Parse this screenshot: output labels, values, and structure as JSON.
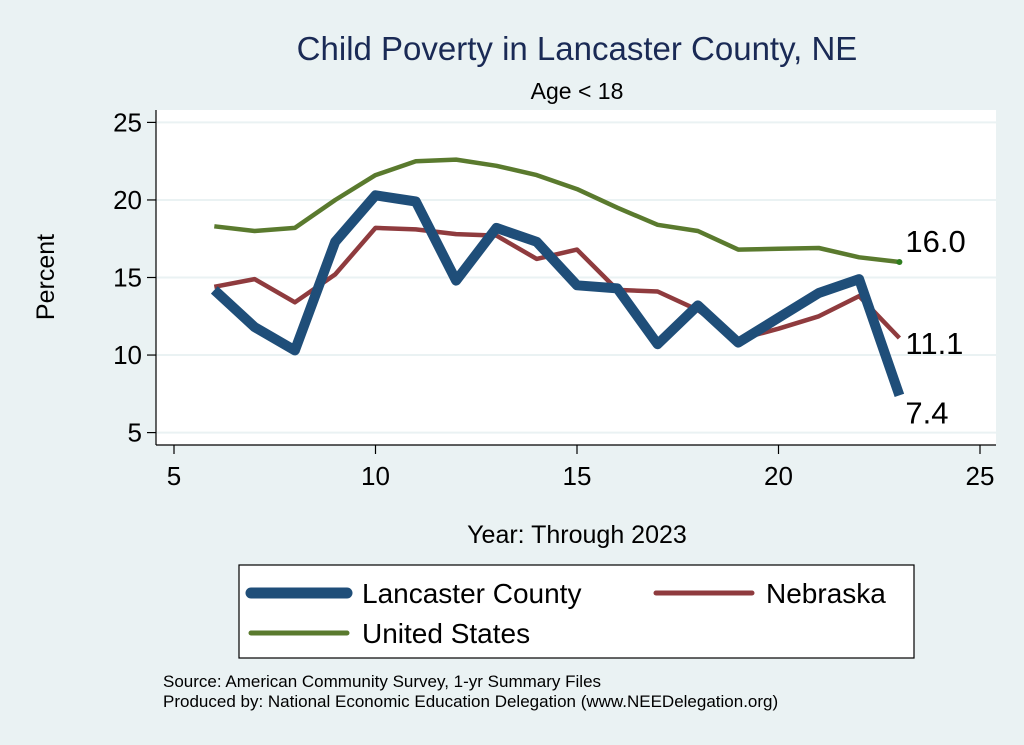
{
  "chart_data": {
    "type": "line",
    "title": "Child Poverty in Lancaster County, NE",
    "subtitle": "Age < 18",
    "xlabel": "Year: Through 2023",
    "ylabel": "Percent",
    "xlim": [
      5,
      25
    ],
    "ylim": [
      4.2,
      25.8
    ],
    "xticks": [
      5,
      10,
      15,
      20,
      25
    ],
    "yticks": [
      5,
      10,
      15,
      20,
      25
    ],
    "grid": "horizontal",
    "legend_position": "bottom",
    "series": [
      {
        "name": "Lancaster County",
        "color": "#1f4e79",
        "x": [
          6,
          7,
          8,
          9,
          10,
          11,
          12,
          13,
          14,
          15,
          16,
          17,
          18,
          19,
          20,
          21,
          22,
          23
        ],
        "values": [
          14.2,
          11.8,
          10.3,
          17.3,
          20.3,
          19.9,
          14.8,
          18.2,
          17.3,
          14.5,
          14.3,
          10.7,
          13.2,
          10.8,
          12.4,
          14.0,
          14.9,
          7.4
        ],
        "end_label": "7.4"
      },
      {
        "name": "Nebraska",
        "color": "#8f3b3e",
        "x": [
          6,
          7,
          8,
          9,
          10,
          11,
          12,
          13,
          14,
          15,
          16,
          17,
          18,
          19,
          20,
          21,
          22,
          23
        ],
        "values": [
          14.4,
          14.9,
          13.4,
          15.2,
          18.2,
          18.1,
          17.8,
          17.7,
          16.2,
          16.8,
          14.2,
          14.1,
          12.9,
          11.0,
          11.7,
          12.5,
          13.8,
          11.1
        ],
        "end_label": "11.1"
      },
      {
        "name": "United States",
        "color": "#5a7a2e",
        "x": [
          6,
          7,
          8,
          9,
          10,
          11,
          12,
          13,
          14,
          15,
          16,
          17,
          18,
          19,
          20,
          21,
          22,
          23
        ],
        "values": [
          18.3,
          18.0,
          18.2,
          20.0,
          21.6,
          22.5,
          22.6,
          22.2,
          21.6,
          20.7,
          19.5,
          18.4,
          18.0,
          16.8,
          16.85,
          16.9,
          16.3,
          16.0
        ],
        "end_label": "16.0"
      }
    ],
    "notes": [
      "Source: American Community Survey, 1-yr Summary Files",
      "Produced by: National Economic Education Delegation (www.NEEDelegation.org)"
    ]
  }
}
